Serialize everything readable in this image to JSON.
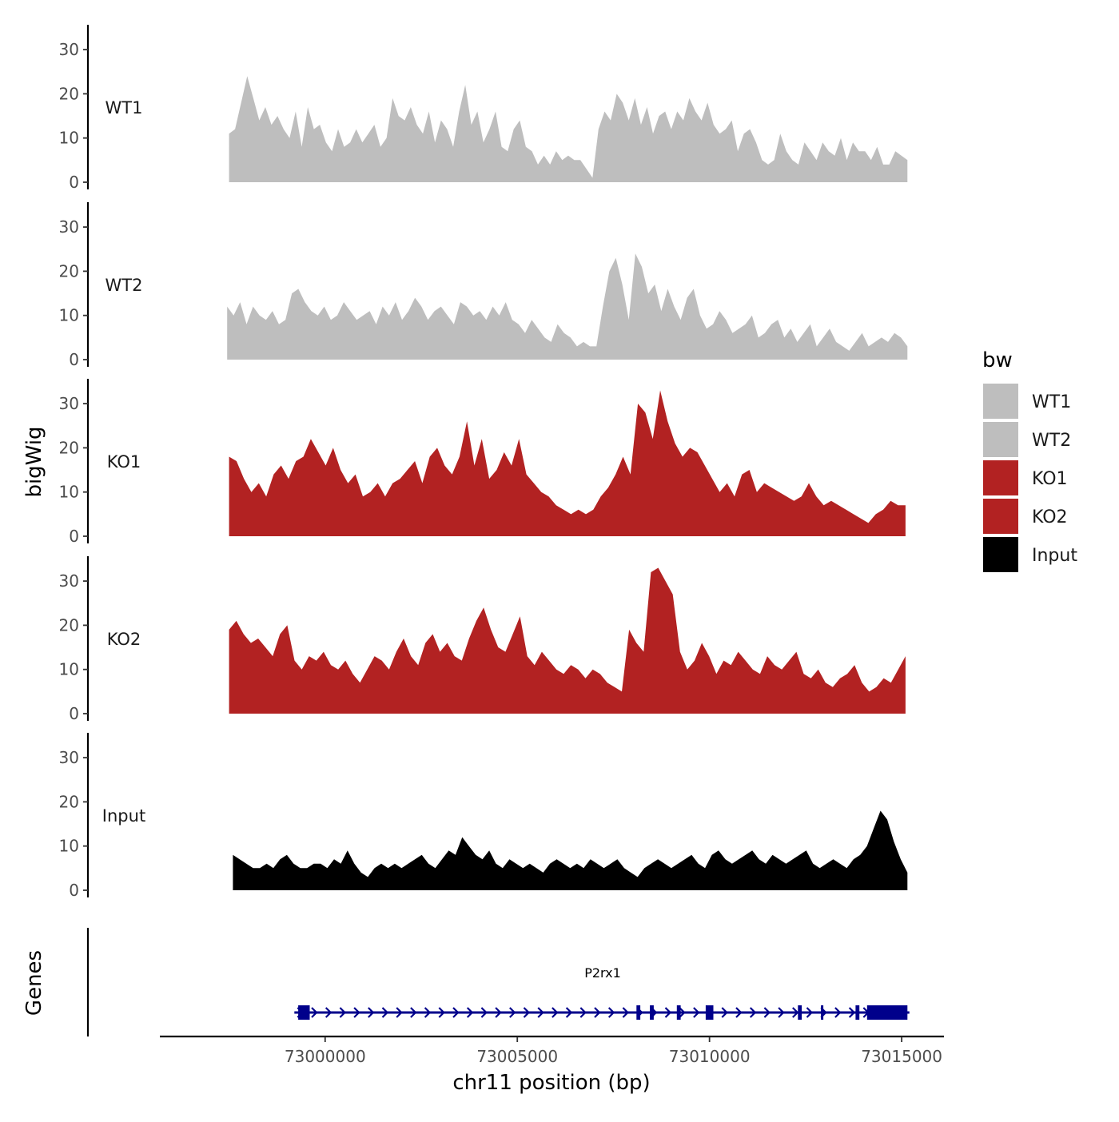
{
  "chart_data": {
    "type": "area",
    "ylabel": "bigWig",
    "xlabel": "chr11 position (bp)",
    "genes_label": "Genes",
    "ylim": [
      0,
      35
    ],
    "yticks": [
      "0",
      "10",
      "20",
      "30"
    ],
    "xlim": [
      72995700,
      73016100
    ],
    "xticks": [
      {
        "value": 73000000,
        "label": "73000000"
      },
      {
        "value": 73005000,
        "label": "73005000"
      },
      {
        "value": 73010000,
        "label": "73010000"
      },
      {
        "value": 73015000,
        "label": "73015000"
      }
    ],
    "legend": {
      "title": "bw",
      "position": "right",
      "entries": [
        {
          "label": "WT1",
          "color": "#bebebe"
        },
        {
          "label": "WT2",
          "color": "#bebebe"
        },
        {
          "label": "KO1",
          "color": "#b22222"
        },
        {
          "label": "KO2",
          "color": "#b22222"
        },
        {
          "label": "Input",
          "color": "#000000"
        }
      ]
    },
    "series": [
      {
        "name": "WT1",
        "color": "#bebebe",
        "x_start": 72997500,
        "x_end": 73015150,
        "values": [
          11,
          12,
          18,
          24,
          19,
          14,
          17,
          13,
          15,
          12,
          10,
          16,
          8,
          17,
          12,
          13,
          9,
          7,
          12,
          8,
          9,
          12,
          9,
          11,
          13,
          8,
          10,
          19,
          15,
          14,
          17,
          13,
          11,
          16,
          9,
          14,
          12,
          8,
          16,
          22,
          13,
          16,
          9,
          12,
          16,
          8,
          7,
          12,
          14,
          8,
          7,
          4,
          6,
          4,
          7,
          5,
          6,
          5,
          5,
          3,
          1,
          12,
          16,
          14,
          20,
          18,
          14,
          19,
          13,
          17,
          11,
          15,
          16,
          12,
          16,
          14,
          19,
          16,
          14,
          18,
          13,
          11,
          12,
          14,
          7,
          11,
          12,
          9,
          5,
          4,
          5,
          11,
          7,
          5,
          4,
          9,
          7,
          5,
          9,
          7,
          6,
          10,
          5,
          9,
          7,
          7,
          5,
          8,
          4,
          4,
          7,
          6,
          5
        ]
      },
      {
        "name": "WT2",
        "color": "#bebebe",
        "x_start": 72997450,
        "x_end": 73015150,
        "values": [
          12,
          10,
          13,
          8,
          12,
          10,
          9,
          11,
          8,
          9,
          15,
          16,
          13,
          11,
          10,
          12,
          9,
          10,
          13,
          11,
          9,
          10,
          11,
          8,
          12,
          10,
          13,
          9,
          11,
          14,
          12,
          9,
          11,
          12,
          10,
          8,
          13,
          12,
          10,
          11,
          9,
          12,
          10,
          13,
          9,
          8,
          6,
          9,
          7,
          5,
          4,
          8,
          6,
          5,
          3,
          4,
          3,
          3,
          12,
          20,
          23,
          17,
          9,
          24,
          21,
          15,
          17,
          11,
          16,
          12,
          9,
          14,
          16,
          10,
          7,
          8,
          11,
          9,
          6,
          7,
          8,
          10,
          5,
          6,
          8,
          9,
          5,
          7,
          4,
          6,
          8,
          3,
          5,
          7,
          4,
          3,
          2,
          4,
          6,
          3,
          4,
          5,
          4,
          6,
          5,
          3
        ]
      },
      {
        "name": "KO1",
        "color": "#b22222",
        "x_start": 72997500,
        "x_end": 73015100,
        "values": [
          18,
          17,
          13,
          10,
          12,
          9,
          14,
          16,
          13,
          17,
          18,
          22,
          19,
          16,
          20,
          15,
          12,
          14,
          9,
          10,
          12,
          9,
          12,
          13,
          15,
          17,
          12,
          18,
          20,
          16,
          14,
          18,
          26,
          16,
          22,
          13,
          15,
          19,
          16,
          22,
          14,
          12,
          10,
          9,
          7,
          6,
          5,
          6,
          5,
          6,
          9,
          11,
          14,
          18,
          14,
          30,
          28,
          22,
          33,
          26,
          21,
          18,
          20,
          19,
          16,
          13,
          10,
          12,
          9,
          14,
          15,
          10,
          12,
          11,
          10,
          9,
          8,
          9,
          12,
          9,
          7,
          8,
          7,
          6,
          5,
          4,
          3,
          5,
          6,
          8,
          7,
          7
        ]
      },
      {
        "name": "KO2",
        "color": "#b22222",
        "x_start": 72997500,
        "x_end": 73015100,
        "values": [
          19,
          21,
          18,
          16,
          17,
          15,
          13,
          18,
          20,
          12,
          10,
          13,
          12,
          14,
          11,
          10,
          12,
          9,
          7,
          10,
          13,
          12,
          10,
          14,
          17,
          13,
          11,
          16,
          18,
          14,
          16,
          13,
          12,
          17,
          21,
          24,
          19,
          15,
          14,
          18,
          22,
          13,
          11,
          14,
          12,
          10,
          9,
          11,
          10,
          8,
          10,
          9,
          7,
          6,
          5,
          19,
          16,
          14,
          32,
          33,
          30,
          27,
          14,
          10,
          12,
          16,
          13,
          9,
          12,
          11,
          14,
          12,
          10,
          9,
          13,
          11,
          10,
          12,
          14,
          9,
          8,
          10,
          7,
          6,
          8,
          9,
          11,
          7,
          5,
          6,
          8,
          7,
          10,
          13
        ]
      },
      {
        "name": "Input",
        "color": "#000000",
        "x_start": 72997600,
        "x_end": 73015150,
        "values": [
          8,
          7,
          6,
          5,
          5,
          6,
          5,
          7,
          8,
          6,
          5,
          5,
          6,
          6,
          5,
          7,
          6,
          9,
          6,
          4,
          3,
          5,
          6,
          5,
          6,
          5,
          6,
          7,
          8,
          6,
          5,
          7,
          9,
          8,
          12,
          10,
          8,
          7,
          9,
          6,
          5,
          7,
          6,
          5,
          6,
          5,
          4,
          6,
          7,
          6,
          5,
          6,
          5,
          7,
          6,
          5,
          6,
          7,
          5,
          4,
          3,
          5,
          6,
          7,
          6,
          5,
          6,
          7,
          8,
          6,
          5,
          8,
          9,
          7,
          6,
          7,
          8,
          9,
          7,
          6,
          8,
          7,
          6,
          7,
          8,
          9,
          6,
          5,
          6,
          7,
          6,
          5,
          7,
          8,
          10,
          14,
          18,
          16,
          11,
          7,
          4
        ]
      }
    ],
    "genes": [
      {
        "name": "P2rx1",
        "strand": "+",
        "x_start": 72999200,
        "x_end": 73015200,
        "exons": [
          [
            72999300,
            72999600
          ],
          [
            73008100,
            73008200
          ],
          [
            73008450,
            73008550
          ],
          [
            73009150,
            73009250
          ],
          [
            73009900,
            73010100
          ],
          [
            73012300,
            73012400
          ],
          [
            73012900,
            73012950
          ],
          [
            73013800,
            73013900
          ],
          [
            73014100,
            73015150
          ]
        ]
      }
    ]
  }
}
